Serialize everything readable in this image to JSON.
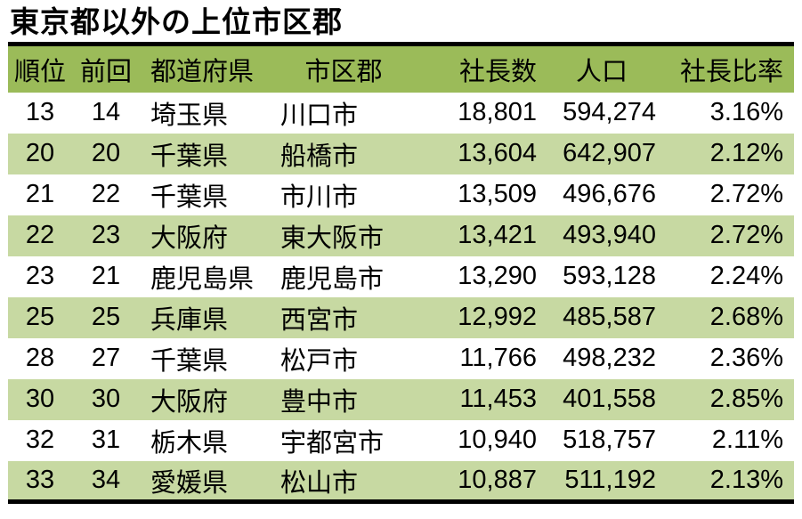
{
  "title": "東京都以外の上位市区郡",
  "colors": {
    "header_bg": "#9BBB59",
    "row_alt_bg": "#C7D9A2",
    "row_bg": "#FFFFFF",
    "rule_color": "#000000",
    "text_color": "#000000"
  },
  "table": {
    "columns": [
      {
        "key": "rank",
        "label": "順位",
        "header_align": "center",
        "cell_align": "center"
      },
      {
        "key": "prev",
        "label": "前回",
        "header_align": "center",
        "cell_align": "center"
      },
      {
        "key": "pref",
        "label": "都道府県",
        "header_align": "left",
        "cell_align": "left"
      },
      {
        "key": "city",
        "label": "市区郡",
        "header_align": "center",
        "cell_align": "left"
      },
      {
        "key": "presidents",
        "label": "社長数",
        "header_align": "right",
        "cell_align": "right"
      },
      {
        "key": "population",
        "label": "人口",
        "header_align": "center",
        "cell_align": "right"
      },
      {
        "key": "ratio",
        "label": "社長比率",
        "header_align": "right",
        "cell_align": "right"
      }
    ],
    "rows": [
      {
        "rank": "13",
        "prev": "14",
        "pref": "埼玉県",
        "city": "川口市",
        "presidents": "18,801",
        "population": "594,274",
        "ratio": "3.16%"
      },
      {
        "rank": "20",
        "prev": "20",
        "pref": "千葉県",
        "city": "船橋市",
        "presidents": "13,604",
        "population": "642,907",
        "ratio": "2.12%"
      },
      {
        "rank": "21",
        "prev": "22",
        "pref": "千葉県",
        "city": "市川市",
        "presidents": "13,509",
        "population": "496,676",
        "ratio": "2.72%"
      },
      {
        "rank": "22",
        "prev": "23",
        "pref": "大阪府",
        "city": "東大阪市",
        "presidents": "13,421",
        "population": "493,940",
        "ratio": "2.72%"
      },
      {
        "rank": "23",
        "prev": "21",
        "pref": "鹿児島県",
        "city": "鹿児島市",
        "presidents": "13,290",
        "population": "593,128",
        "ratio": "2.24%"
      },
      {
        "rank": "25",
        "prev": "25",
        "pref": "兵庫県",
        "city": "西宮市",
        "presidents": "12,992",
        "population": "485,587",
        "ratio": "2.68%"
      },
      {
        "rank": "28",
        "prev": "27",
        "pref": "千葉県",
        "city": "松戸市",
        "presidents": "11,766",
        "population": "498,232",
        "ratio": "2.36%"
      },
      {
        "rank": "30",
        "prev": "30",
        "pref": "大阪府",
        "city": "豊中市",
        "presidents": "11,453",
        "population": "401,558",
        "ratio": "2.85%"
      },
      {
        "rank": "32",
        "prev": "31",
        "pref": "栃木県",
        "city": "宇都宮市",
        "presidents": "10,940",
        "population": "518,757",
        "ratio": "2.11%"
      },
      {
        "rank": "33",
        "prev": "34",
        "pref": "愛媛県",
        "city": "松山市",
        "presidents": "10,887",
        "population": "511,192",
        "ratio": "2.13%"
      }
    ]
  }
}
